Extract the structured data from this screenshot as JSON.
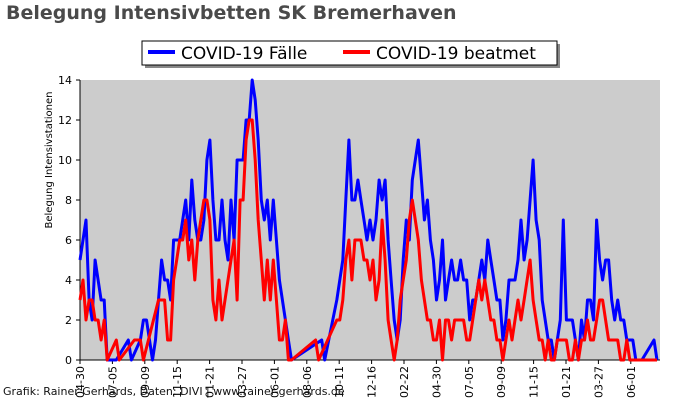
{
  "chart_data": {
    "type": "line",
    "title": "Belegung Intensivbetten SK Bremerhaven",
    "ylabel": "Belegung Intensivstationen",
    "xlabel": "",
    "ylim": [
      0,
      14
    ],
    "yticks": [
      0,
      2,
      4,
      6,
      8,
      10,
      12,
      14
    ],
    "xticks": [
      "04-30",
      "07-05",
      "09-09",
      "11-15",
      "01-21",
      "03-27",
      "06-01",
      "08-06",
      "10-11",
      "12-16",
      "02-22",
      "04-30",
      "07-05",
      "09-09",
      "11-15",
      "01-21",
      "03-27",
      "06-01"
    ],
    "grid": false,
    "background": "#cccccc",
    "legend_position": "top-center",
    "credit": "Grafik: Rainer Gerhards, Daten: DIVI | www.rainer-gerhards.de",
    "series": [
      {
        "name": "COVID-19 Fälle",
        "color": "#0000ff",
        "points": [
          [
            0,
            5
          ],
          [
            1,
            6
          ],
          [
            2,
            7
          ],
          [
            3,
            3
          ],
          [
            4,
            2
          ],
          [
            5,
            5
          ],
          [
            6,
            4
          ],
          [
            7,
            3
          ],
          [
            8,
            3
          ],
          [
            9,
            0
          ],
          [
            12,
            0
          ],
          [
            16,
            1
          ],
          [
            17,
            0
          ],
          [
            20,
            1
          ],
          [
            21,
            2
          ],
          [
            22,
            2
          ],
          [
            23,
            1
          ],
          [
            24,
            0
          ],
          [
            25,
            1
          ],
          [
            26,
            3
          ],
          [
            27,
            5
          ],
          [
            28,
            4
          ],
          [
            29,
            4
          ],
          [
            30,
            3
          ],
          [
            31,
            6
          ],
          [
            32,
            6
          ],
          [
            33,
            6
          ],
          [
            34,
            7
          ],
          [
            35,
            8
          ],
          [
            36,
            6
          ],
          [
            37,
            9
          ],
          [
            38,
            7
          ],
          [
            39,
            6
          ],
          [
            40,
            6
          ],
          [
            41,
            7
          ],
          [
            42,
            10
          ],
          [
            43,
            11
          ],
          [
            44,
            8
          ],
          [
            45,
            6
          ],
          [
            46,
            6
          ],
          [
            47,
            8
          ],
          [
            48,
            6
          ],
          [
            49,
            5
          ],
          [
            50,
            8
          ],
          [
            51,
            6
          ],
          [
            52,
            10
          ],
          [
            53,
            10
          ],
          [
            54,
            10
          ],
          [
            55,
            12
          ],
          [
            56,
            12
          ],
          [
            57,
            14
          ],
          [
            58,
            13
          ],
          [
            59,
            11
          ],
          [
            60,
            8
          ],
          [
            61,
            7
          ],
          [
            62,
            8
          ],
          [
            63,
            6
          ],
          [
            64,
            8
          ],
          [
            65,
            6
          ],
          [
            66,
            4
          ],
          [
            67,
            3
          ],
          [
            68,
            2
          ],
          [
            69,
            1
          ],
          [
            70,
            0
          ],
          [
            80,
            1
          ],
          [
            81,
            0
          ],
          [
            85,
            3
          ],
          [
            86,
            4
          ],
          [
            87,
            5
          ],
          [
            88,
            8
          ],
          [
            89,
            11
          ],
          [
            90,
            8
          ],
          [
            91,
            8
          ],
          [
            92,
            9
          ],
          [
            93,
            8
          ],
          [
            94,
            7
          ],
          [
            95,
            6
          ],
          [
            96,
            7
          ],
          [
            97,
            6
          ],
          [
            98,
            7
          ],
          [
            99,
            9
          ],
          [
            100,
            8
          ],
          [
            101,
            9
          ],
          [
            102,
            6
          ],
          [
            103,
            4
          ],
          [
            104,
            2
          ],
          [
            105,
            1
          ],
          [
            106,
            2
          ],
          [
            107,
            5
          ],
          [
            108,
            7
          ],
          [
            109,
            6
          ],
          [
            110,
            9
          ],
          [
            111,
            10
          ],
          [
            112,
            11
          ],
          [
            113,
            9
          ],
          [
            114,
            7
          ],
          [
            115,
            8
          ],
          [
            116,
            6
          ],
          [
            117,
            5
          ],
          [
            118,
            3
          ],
          [
            119,
            4
          ],
          [
            120,
            6
          ],
          [
            121,
            3
          ],
          [
            122,
            4
          ],
          [
            123,
            5
          ],
          [
            124,
            4
          ],
          [
            125,
            4
          ],
          [
            126,
            5
          ],
          [
            127,
            4
          ],
          [
            128,
            4
          ],
          [
            129,
            2
          ],
          [
            130,
            3
          ],
          [
            131,
            3
          ],
          [
            132,
            4
          ],
          [
            133,
            5
          ],
          [
            134,
            4
          ],
          [
            135,
            6
          ],
          [
            136,
            5
          ],
          [
            137,
            4
          ],
          [
            138,
            3
          ],
          [
            139,
            3
          ],
          [
            140,
            1
          ],
          [
            141,
            2
          ],
          [
            142,
            4
          ],
          [
            143,
            4
          ],
          [
            144,
            4
          ],
          [
            145,
            5
          ],
          [
            146,
            7
          ],
          [
            147,
            5
          ],
          [
            148,
            6
          ],
          [
            149,
            8
          ],
          [
            150,
            10
          ],
          [
            151,
            7
          ],
          [
            152,
            6
          ],
          [
            153,
            3
          ],
          [
            154,
            2
          ],
          [
            155,
            1
          ],
          [
            156,
            1
          ],
          [
            157,
            0
          ],
          [
            158,
            1
          ],
          [
            159,
            2
          ],
          [
            160,
            7
          ],
          [
            161,
            2
          ],
          [
            162,
            2
          ],
          [
            163,
            2
          ],
          [
            164,
            1
          ],
          [
            165,
            0
          ],
          [
            166,
            2
          ],
          [
            167,
            1
          ],
          [
            168,
            3
          ],
          [
            169,
            3
          ],
          [
            170,
            2
          ],
          [
            171,
            7
          ],
          [
            172,
            5
          ],
          [
            173,
            4
          ],
          [
            174,
            5
          ],
          [
            175,
            5
          ],
          [
            176,
            3
          ],
          [
            177,
            2
          ],
          [
            178,
            3
          ],
          [
            179,
            2
          ],
          [
            180,
            2
          ],
          [
            181,
            1
          ],
          [
            182,
            1
          ],
          [
            183,
            1
          ],
          [
            184,
            0
          ],
          [
            186,
            0
          ],
          [
            190,
            1
          ],
          [
            191,
            0
          ]
        ]
      },
      {
        "name": "COVID-19 beatmet",
        "color": "#ff0000",
        "points": [
          [
            0,
            3
          ],
          [
            1,
            4
          ],
          [
            2,
            2
          ],
          [
            3,
            3
          ],
          [
            4,
            3
          ],
          [
            5,
            2
          ],
          [
            6,
            2
          ],
          [
            7,
            1
          ],
          [
            8,
            2
          ],
          [
            9,
            0
          ],
          [
            12,
            1
          ],
          [
            13,
            0
          ],
          [
            18,
            1
          ],
          [
            19,
            1
          ],
          [
            20,
            1
          ],
          [
            21,
            0
          ],
          [
            26,
            3
          ],
          [
            27,
            3
          ],
          [
            28,
            3
          ],
          [
            29,
            1
          ],
          [
            30,
            1
          ],
          [
            31,
            4
          ],
          [
            32,
            5
          ],
          [
            33,
            6
          ],
          [
            34,
            6
          ],
          [
            35,
            7
          ],
          [
            36,
            5
          ],
          [
            37,
            6
          ],
          [
            38,
            4
          ],
          [
            39,
            6
          ],
          [
            40,
            7
          ],
          [
            41,
            8
          ],
          [
            42,
            8
          ],
          [
            43,
            7
          ],
          [
            44,
            3
          ],
          [
            45,
            2
          ],
          [
            46,
            4
          ],
          [
            47,
            2
          ],
          [
            48,
            3
          ],
          [
            49,
            4
          ],
          [
            50,
            5
          ],
          [
            51,
            6
          ],
          [
            52,
            3
          ],
          [
            53,
            8
          ],
          [
            54,
            8
          ],
          [
            55,
            11
          ],
          [
            56,
            12
          ],
          [
            57,
            12
          ],
          [
            58,
            10
          ],
          [
            59,
            7
          ],
          [
            60,
            5
          ],
          [
            61,
            3
          ],
          [
            62,
            5
          ],
          [
            63,
            3
          ],
          [
            64,
            5
          ],
          [
            65,
            3
          ],
          [
            66,
            1
          ],
          [
            67,
            1
          ],
          [
            68,
            2
          ],
          [
            69,
            0
          ],
          [
            70,
            0
          ],
          [
            78,
            1
          ],
          [
            79,
            0
          ],
          [
            85,
            2
          ],
          [
            86,
            2
          ],
          [
            87,
            3
          ],
          [
            88,
            5
          ],
          [
            89,
            6
          ],
          [
            90,
            4
          ],
          [
            91,
            6
          ],
          [
            92,
            6
          ],
          [
            93,
            6
          ],
          [
            94,
            5
          ],
          [
            95,
            5
          ],
          [
            96,
            4
          ],
          [
            97,
            5
          ],
          [
            98,
            3
          ],
          [
            99,
            4
          ],
          [
            100,
            7
          ],
          [
            101,
            5
          ],
          [
            102,
            2
          ],
          [
            103,
            1
          ],
          [
            104,
            0
          ],
          [
            105,
            1
          ],
          [
            106,
            3
          ],
          [
            107,
            4
          ],
          [
            108,
            5
          ],
          [
            109,
            7
          ],
          [
            110,
            8
          ],
          [
            111,
            7
          ],
          [
            112,
            6
          ],
          [
            113,
            4
          ],
          [
            114,
            3
          ],
          [
            115,
            2
          ],
          [
            116,
            2
          ],
          [
            117,
            1
          ],
          [
            118,
            1
          ],
          [
            119,
            2
          ],
          [
            120,
            0
          ],
          [
            121,
            2
          ],
          [
            122,
            2
          ],
          [
            123,
            1
          ],
          [
            124,
            2
          ],
          [
            125,
            2
          ],
          [
            126,
            2
          ],
          [
            127,
            2
          ],
          [
            128,
            1
          ],
          [
            129,
            1
          ],
          [
            130,
            2
          ],
          [
            131,
            3
          ],
          [
            132,
            4
          ],
          [
            133,
            3
          ],
          [
            134,
            4
          ],
          [
            135,
            3
          ],
          [
            136,
            2
          ],
          [
            137,
            2
          ],
          [
            138,
            1
          ],
          [
            139,
            1
          ],
          [
            140,
            0
          ],
          [
            141,
            1
          ],
          [
            142,
            2
          ],
          [
            143,
            1
          ],
          [
            144,
            2
          ],
          [
            145,
            3
          ],
          [
            146,
            2
          ],
          [
            147,
            3
          ],
          [
            148,
            4
          ],
          [
            149,
            5
          ],
          [
            150,
            3
          ],
          [
            151,
            2
          ],
          [
            152,
            1
          ],
          [
            153,
            1
          ],
          [
            154,
            0
          ],
          [
            155,
            1
          ],
          [
            156,
            0
          ],
          [
            157,
            0
          ],
          [
            158,
            1
          ],
          [
            159,
            1
          ],
          [
            160,
            1
          ],
          [
            161,
            1
          ],
          [
            162,
            0
          ],
          [
            163,
            0
          ],
          [
            164,
            1
          ],
          [
            165,
            0
          ],
          [
            166,
            1
          ],
          [
            167,
            1
          ],
          [
            168,
            2
          ],
          [
            169,
            1
          ],
          [
            170,
            1
          ],
          [
            171,
            2
          ],
          [
            172,
            3
          ],
          [
            173,
            3
          ],
          [
            174,
            2
          ],
          [
            175,
            1
          ],
          [
            176,
            1
          ],
          [
            177,
            1
          ],
          [
            178,
            1
          ],
          [
            179,
            0
          ],
          [
            180,
            0
          ],
          [
            181,
            1
          ],
          [
            182,
            0
          ],
          [
            183,
            0
          ],
          [
            191,
            0
          ]
        ]
      }
    ]
  }
}
